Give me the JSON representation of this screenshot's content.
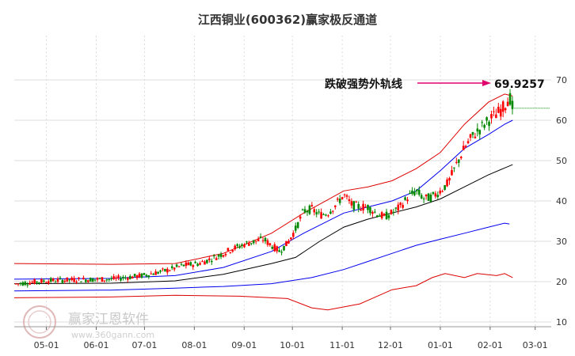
{
  "title": "江西铜业(600362)赢家极反通道",
  "watermark": {
    "name": "赢家江恩软件",
    "url": "www.360gann.com"
  },
  "chart_data": {
    "type": "candlestick",
    "x_ticks": [
      "05-01",
      "06-01",
      "07-01",
      "08-01",
      "09-01",
      "10-01",
      "11-01",
      "12-01",
      "01-01",
      "02-01",
      "03-01"
    ],
    "x_tick_days": [
      0,
      31,
      61,
      92,
      123,
      153,
      184,
      214,
      245,
      276,
      304
    ],
    "y_ticks": [
      10,
      20,
      30,
      40,
      50,
      60,
      70
    ],
    "ylim": [
      10,
      72
    ],
    "annotation": {
      "text": "跌破强势外轨线",
      "value_label": "69.9257",
      "value": 69.9257
    },
    "current_level": 63,
    "colors": {
      "up": "#ff0000",
      "down": "#008800",
      "outer_band": "#dd0000",
      "middle_band": "#0000ee",
      "inner_band": "#000000",
      "arrow": "#e0006e",
      "level": "#008800"
    },
    "close_path": [
      [
        -20,
        19.4
      ],
      [
        0,
        20.2
      ],
      [
        20,
        20.5
      ],
      [
        40,
        20.6
      ],
      [
        60,
        21.5
      ],
      [
        75,
        22.8
      ],
      [
        85,
        24.0
      ],
      [
        95,
        24.5
      ],
      [
        105,
        26.0
      ],
      [
        115,
        28.0
      ],
      [
        125,
        29.5
      ],
      [
        135,
        30.5
      ],
      [
        140,
        29.0
      ],
      [
        145,
        27.5
      ],
      [
        150,
        29.5
      ],
      [
        155,
        33.0
      ],
      [
        160,
        37.5
      ],
      [
        165,
        38.0
      ],
      [
        170,
        36.5
      ],
      [
        175,
        37.0
      ],
      [
        180,
        39.0
      ],
      [
        185,
        41.5
      ],
      [
        190,
        39.0
      ],
      [
        195,
        38.5
      ],
      [
        200,
        38.5
      ],
      [
        205,
        37.0
      ],
      [
        210,
        36.0
      ],
      [
        215,
        37.0
      ],
      [
        220,
        38.5
      ],
      [
        225,
        41.0
      ],
      [
        230,
        42.5
      ],
      [
        235,
        40.5
      ],
      [
        240,
        41.0
      ],
      [
        245,
        42.5
      ],
      [
        250,
        44.5
      ],
      [
        255,
        49.0
      ],
      [
        260,
        53.0
      ],
      [
        265,
        56.0
      ],
      [
        270,
        58.0
      ],
      [
        275,
        60.0
      ],
      [
        280,
        61.5
      ],
      [
        285,
        63.5
      ],
      [
        288,
        66.0
      ],
      [
        290,
        63.0
      ]
    ],
    "series": [
      {
        "role": "outer_upper",
        "points": [
          [
            -20,
            24.5
          ],
          [
            40,
            24.3
          ],
          [
            80,
            24.5
          ],
          [
            110,
            27.0
          ],
          [
            140,
            32.0
          ],
          [
            160,
            37.0
          ],
          [
            185,
            42.5
          ],
          [
            200,
            43.5
          ],
          [
            215,
            45.0
          ],
          [
            230,
            48.0
          ],
          [
            245,
            52.0
          ],
          [
            260,
            59.0
          ],
          [
            275,
            64.5
          ],
          [
            285,
            66.5
          ],
          [
            290,
            66.0
          ]
        ]
      },
      {
        "role": "middle_upper",
        "points": [
          [
            -20,
            20.6
          ],
          [
            40,
            20.8
          ],
          [
            80,
            21.5
          ],
          [
            110,
            23.5
          ],
          [
            140,
            27.5
          ],
          [
            160,
            32.0
          ],
          [
            185,
            37.0
          ],
          [
            200,
            38.5
          ],
          [
            215,
            40.0
          ],
          [
            230,
            42.5
          ],
          [
            245,
            47.5
          ],
          [
            260,
            53.0
          ],
          [
            275,
            56.5
          ],
          [
            285,
            59.0
          ],
          [
            290,
            60.0
          ]
        ]
      },
      {
        "role": "inner_lower",
        "points": [
          [
            -20,
            19.5
          ],
          [
            40,
            19.6
          ],
          [
            80,
            20.2
          ],
          [
            110,
            21.8
          ],
          [
            140,
            24.5
          ],
          [
            155,
            26.0
          ],
          [
            170,
            30.0
          ],
          [
            185,
            33.5
          ],
          [
            200,
            35.5
          ],
          [
            215,
            37.0
          ],
          [
            230,
            38.5
          ],
          [
            245,
            40.5
          ],
          [
            260,
            43.5
          ],
          [
            275,
            46.5
          ],
          [
            290,
            49.0
          ]
        ]
      },
      {
        "role": "middle_lower",
        "points": [
          [
            -20,
            17.7
          ],
          [
            40,
            17.9
          ],
          [
            80,
            18.4
          ],
          [
            110,
            18.8
          ],
          [
            140,
            19.5
          ],
          [
            165,
            21.0
          ],
          [
            185,
            23.0
          ],
          [
            200,
            25.0
          ],
          [
            215,
            27.0
          ],
          [
            230,
            29.0
          ],
          [
            245,
            30.5
          ],
          [
            260,
            32.0
          ],
          [
            275,
            33.5
          ],
          [
            285,
            34.5
          ],
          [
            288,
            34.3
          ]
        ]
      },
      {
        "role": "outer_lower",
        "points": [
          [
            -20,
            16.0
          ],
          [
            40,
            16.2
          ],
          [
            80,
            16.6
          ],
          [
            120,
            16.4
          ],
          [
            150,
            15.8
          ],
          [
            165,
            13.5
          ],
          [
            175,
            13.0
          ],
          [
            195,
            14.5
          ],
          [
            215,
            18.0
          ],
          [
            230,
            19.0
          ],
          [
            240,
            21.0
          ],
          [
            248,
            22.0
          ],
          [
            260,
            21.0
          ],
          [
            268,
            22.0
          ],
          [
            280,
            21.5
          ],
          [
            285,
            22.0
          ],
          [
            290,
            21.0
          ]
        ]
      }
    ]
  }
}
